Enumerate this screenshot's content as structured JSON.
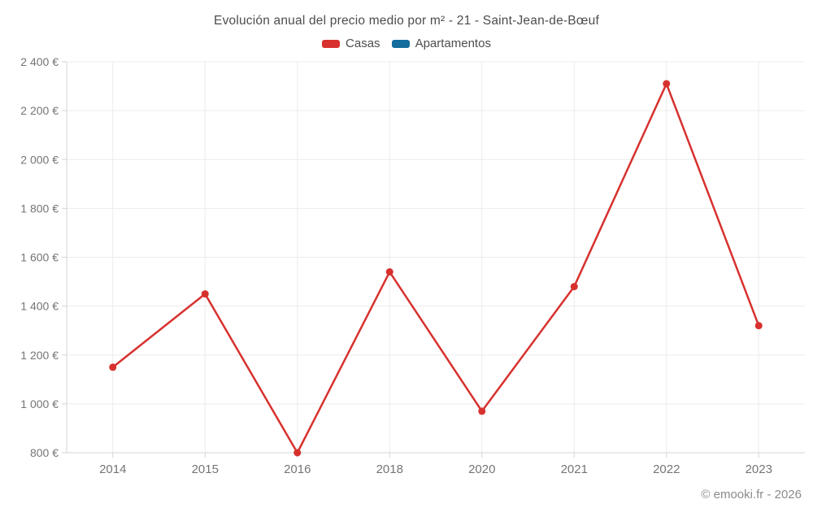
{
  "chart_data": {
    "type": "line",
    "title": "Evolución anual del precio medio por m² - 21 - Saint-Jean-de-Bœuf",
    "categories": [
      "2014",
      "2015",
      "2016",
      "2018",
      "2020",
      "2021",
      "2022",
      "2023"
    ],
    "series": [
      {
        "name": "Casas",
        "color": "#d7312e",
        "values": [
          1150,
          1450,
          800,
          1540,
          970,
          1480,
          2310,
          1320
        ]
      },
      {
        "name": "Apartamentos",
        "color": "#136d9d",
        "values": []
      }
    ],
    "xlabel": "",
    "ylabel": "",
    "ylim": [
      800,
      2400
    ],
    "ytick_values": [
      800,
      1000,
      1200,
      1400,
      1600,
      1800,
      2000,
      2200,
      2400
    ],
    "ytick_labels": [
      "800 €",
      "1 000 €",
      "1 200 €",
      "1 400 €",
      "1 600 €",
      "1 800 €",
      "2 000 €",
      "2 200 €",
      "2 400 €"
    ],
    "grid": true,
    "legend_position": "top",
    "colors": {
      "grid": "#ececec",
      "axis": "#d6d6d6",
      "tick_text": "#757575"
    }
  },
  "footer": {
    "text": "© emooki.fr - 2026"
  }
}
